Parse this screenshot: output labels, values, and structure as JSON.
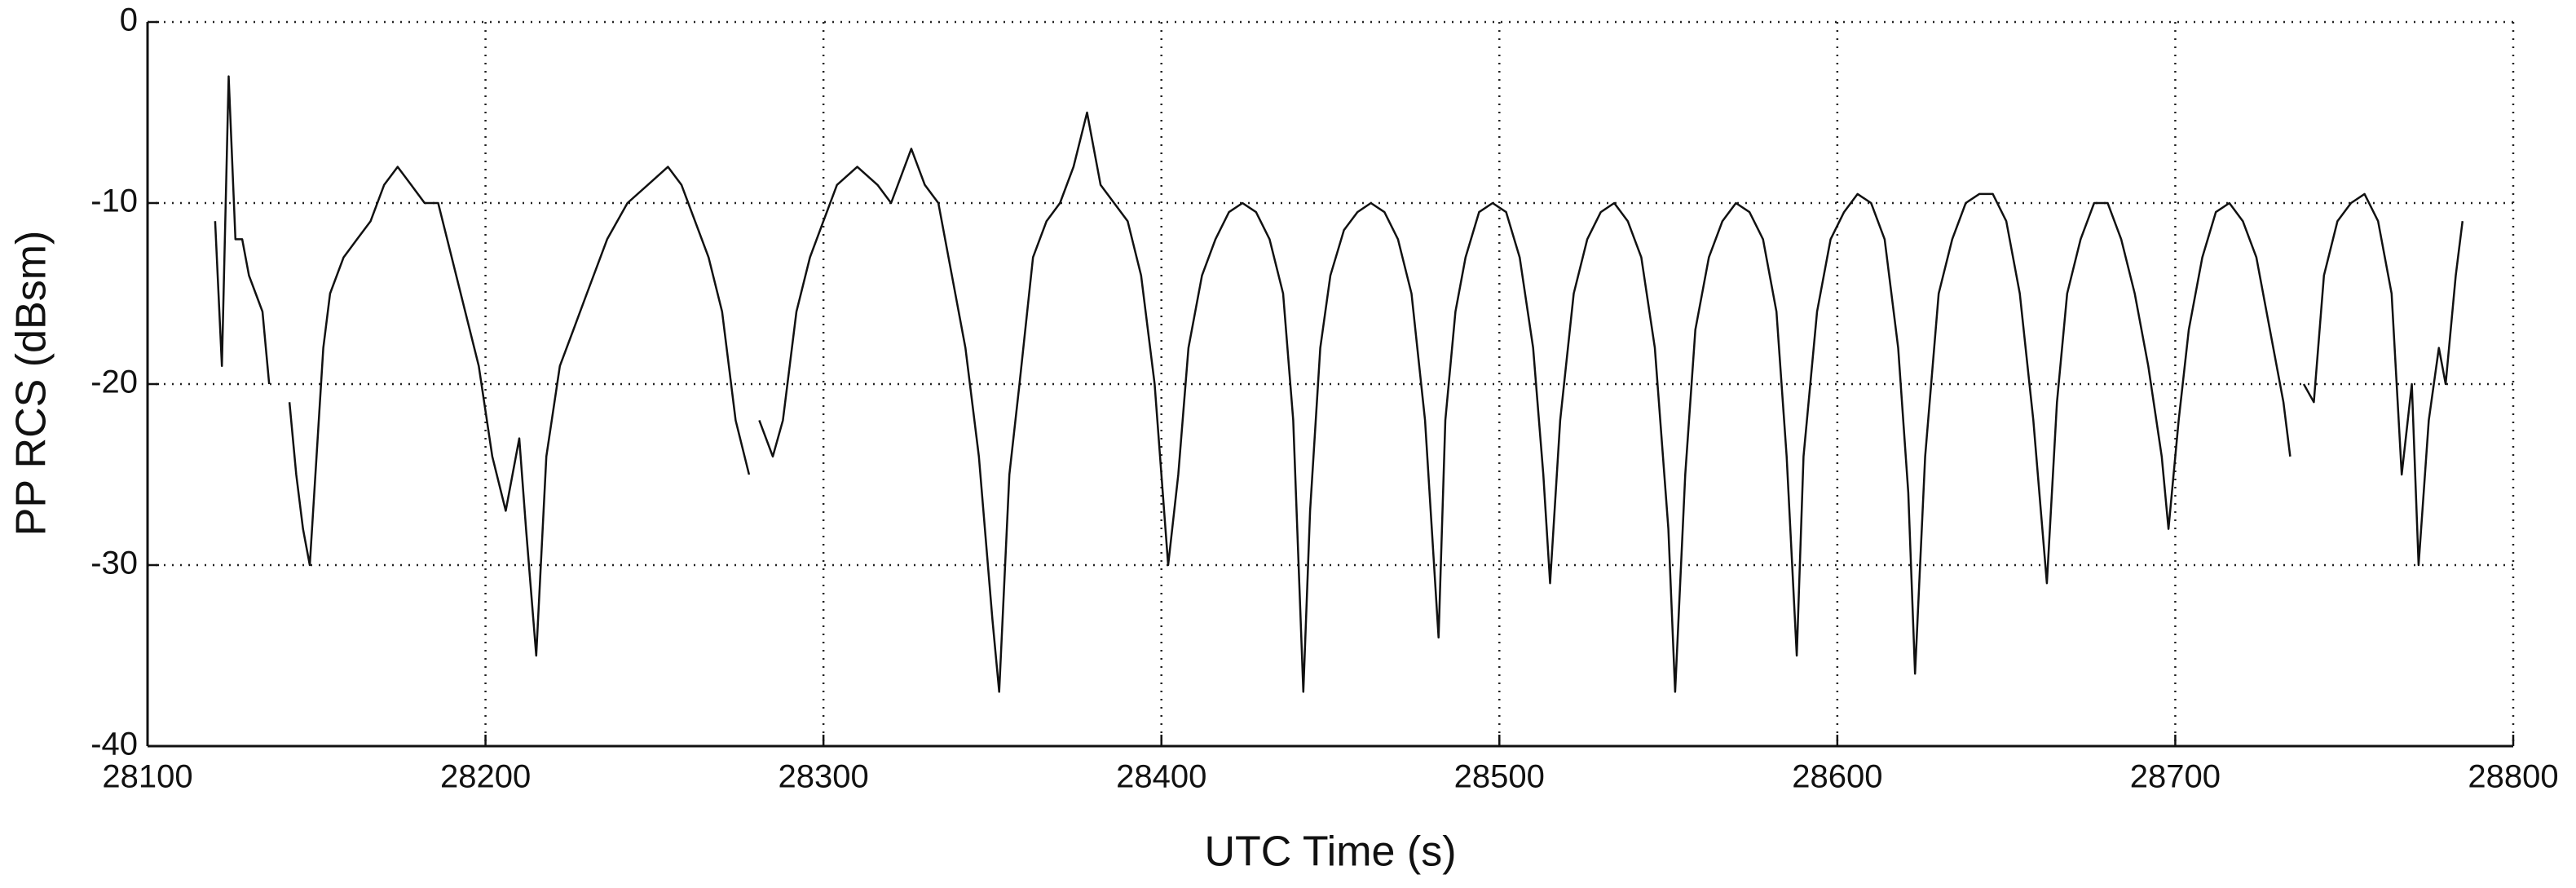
{
  "chart_data": {
    "type": "line",
    "xlabel": "UTC Time (s)",
    "ylabel": "PP RCS (dBsm)",
    "color": "#111111",
    "grid": true,
    "xlim": [
      28100,
      28800
    ],
    "ylim": [
      -40,
      0
    ],
    "xticks": [
      28100,
      28200,
      28300,
      28400,
      28500,
      28600,
      28700,
      28800
    ],
    "yticks": [
      -40,
      -30,
      -20,
      -10,
      0
    ],
    "x": [
      28120,
      28122,
      28124,
      28126,
      28128,
      28130,
      28132,
      28134,
      28136,
      28139,
      28142,
      28144,
      28146,
      28148,
      28150,
      28152,
      28154,
      28158,
      28162,
      28166,
      28170,
      28174,
      28178,
      28182,
      28186,
      28190,
      28194,
      28198,
      28202,
      28206,
      28210,
      28212,
      28215,
      28218,
      28222,
      28226,
      28230,
      28236,
      28242,
      28248,
      28254,
      28258,
      28262,
      28266,
      28270,
      28274,
      28278,
      28280,
      28281,
      28285,
      28288,
      28292,
      28296,
      28300,
      28304,
      28310,
      28316,
      28320,
      28326,
      28330,
      28334,
      28338,
      28342,
      28346,
      28350,
      28352,
      28355,
      28358,
      28362,
      28366,
      28370,
      28374,
      28378,
      28382,
      28386,
      28390,
      28394,
      28398,
      28402,
      28405,
      28408,
      28412,
      28416,
      28420,
      28424,
      28428,
      28432,
      28436,
      28439,
      28442,
      28444,
      28447,
      28450,
      28454,
      28458,
      28462,
      28466,
      28470,
      28474,
      28478,
      28482,
      28484,
      28487,
      28490,
      28494,
      28498,
      28502,
      28506,
      28510,
      28513,
      28515,
      28518,
      28522,
      28526,
      28530,
      28534,
      28538,
      28542,
      28546,
      28550,
      28552,
      28555,
      28558,
      28562,
      28566,
      28570,
      28574,
      28578,
      28582,
      28585,
      28588,
      28590,
      28594,
      28598,
      28602,
      28606,
      28610,
      28614,
      28618,
      28621,
      28623,
      28626,
      28630,
      28634,
      28638,
      28642,
      28646,
      28650,
      28654,
      28658,
      28662,
      28665,
      28668,
      28672,
      28676,
      28680,
      28684,
      28688,
      28692,
      28696,
      28698,
      28701,
      28704,
      28708,
      28712,
      28716,
      28720,
      28724,
      28728,
      28732,
      28734,
      28736,
      28738,
      28741,
      28744,
      28748,
      28752,
      28756,
      28760,
      28764,
      28767,
      28770,
      28772,
      28775,
      28778,
      28780,
      28783,
      28785
    ],
    "values": [
      -11,
      -19,
      -3,
      -12,
      -12,
      -14,
      -15,
      -16,
      -20,
      null,
      -21,
      -25,
      -28,
      -30,
      -24,
      -18,
      -15,
      -13,
      -12,
      -11,
      -9,
      -8,
      -9,
      -10,
      -10,
      -13,
      -16,
      -19,
      -24,
      -27,
      -23,
      -28,
      -35,
      -24,
      -19,
      -17,
      -15,
      -12,
      -10,
      -9,
      -8,
      -9,
      -11,
      -13,
      -16,
      -22,
      -25,
      null,
      -22,
      -24,
      -22,
      -16,
      -13,
      -11,
      -9,
      -8,
      -9,
      -10,
      -7,
      -9,
      -10,
      -14,
      -18,
      -24,
      -33,
      -37,
      -25,
      -20,
      -13,
      -11,
      -10,
      -8,
      -5,
      -9,
      -10,
      -11,
      -14,
      -20,
      -30,
      -25,
      -18,
      -14,
      -12,
      -10.5,
      -10,
      -10.5,
      -12,
      -15,
      -22,
      -37,
      -27,
      -18,
      -14,
      -11.5,
      -10.5,
      -10,
      -10.5,
      -12,
      -15,
      -22,
      -34,
      -22,
      -16,
      -13,
      -10.5,
      -10,
      -10.5,
      -13,
      -18,
      -25,
      -31,
      -22,
      -15,
      -12,
      -10.5,
      -10,
      -11,
      -13,
      -18,
      -28,
      -37,
      -25,
      -17,
      -13,
      -11,
      -10,
      -10.5,
      -12,
      -16,
      -24,
      -35,
      -24,
      -16,
      -12,
      -10.5,
      -9.5,
      -10,
      -12,
      -18,
      -26,
      -36,
      -24,
      -15,
      -12,
      -10,
      -9.5,
      -9.5,
      -11,
      -15,
      -22,
      -31,
      -21,
      -15,
      -12,
      -10,
      -10,
      -12,
      -15,
      -19,
      -24,
      -28,
      -22,
      -17,
      -13,
      -10.5,
      -10,
      -11,
      -13,
      -17,
      -21,
      -24,
      null,
      -20,
      -21,
      -14,
      -11,
      -10,
      -9.5,
      -11,
      -15,
      -25,
      -20,
      -30,
      -22,
      -18,
      -20,
      -14,
      -11
    ]
  }
}
